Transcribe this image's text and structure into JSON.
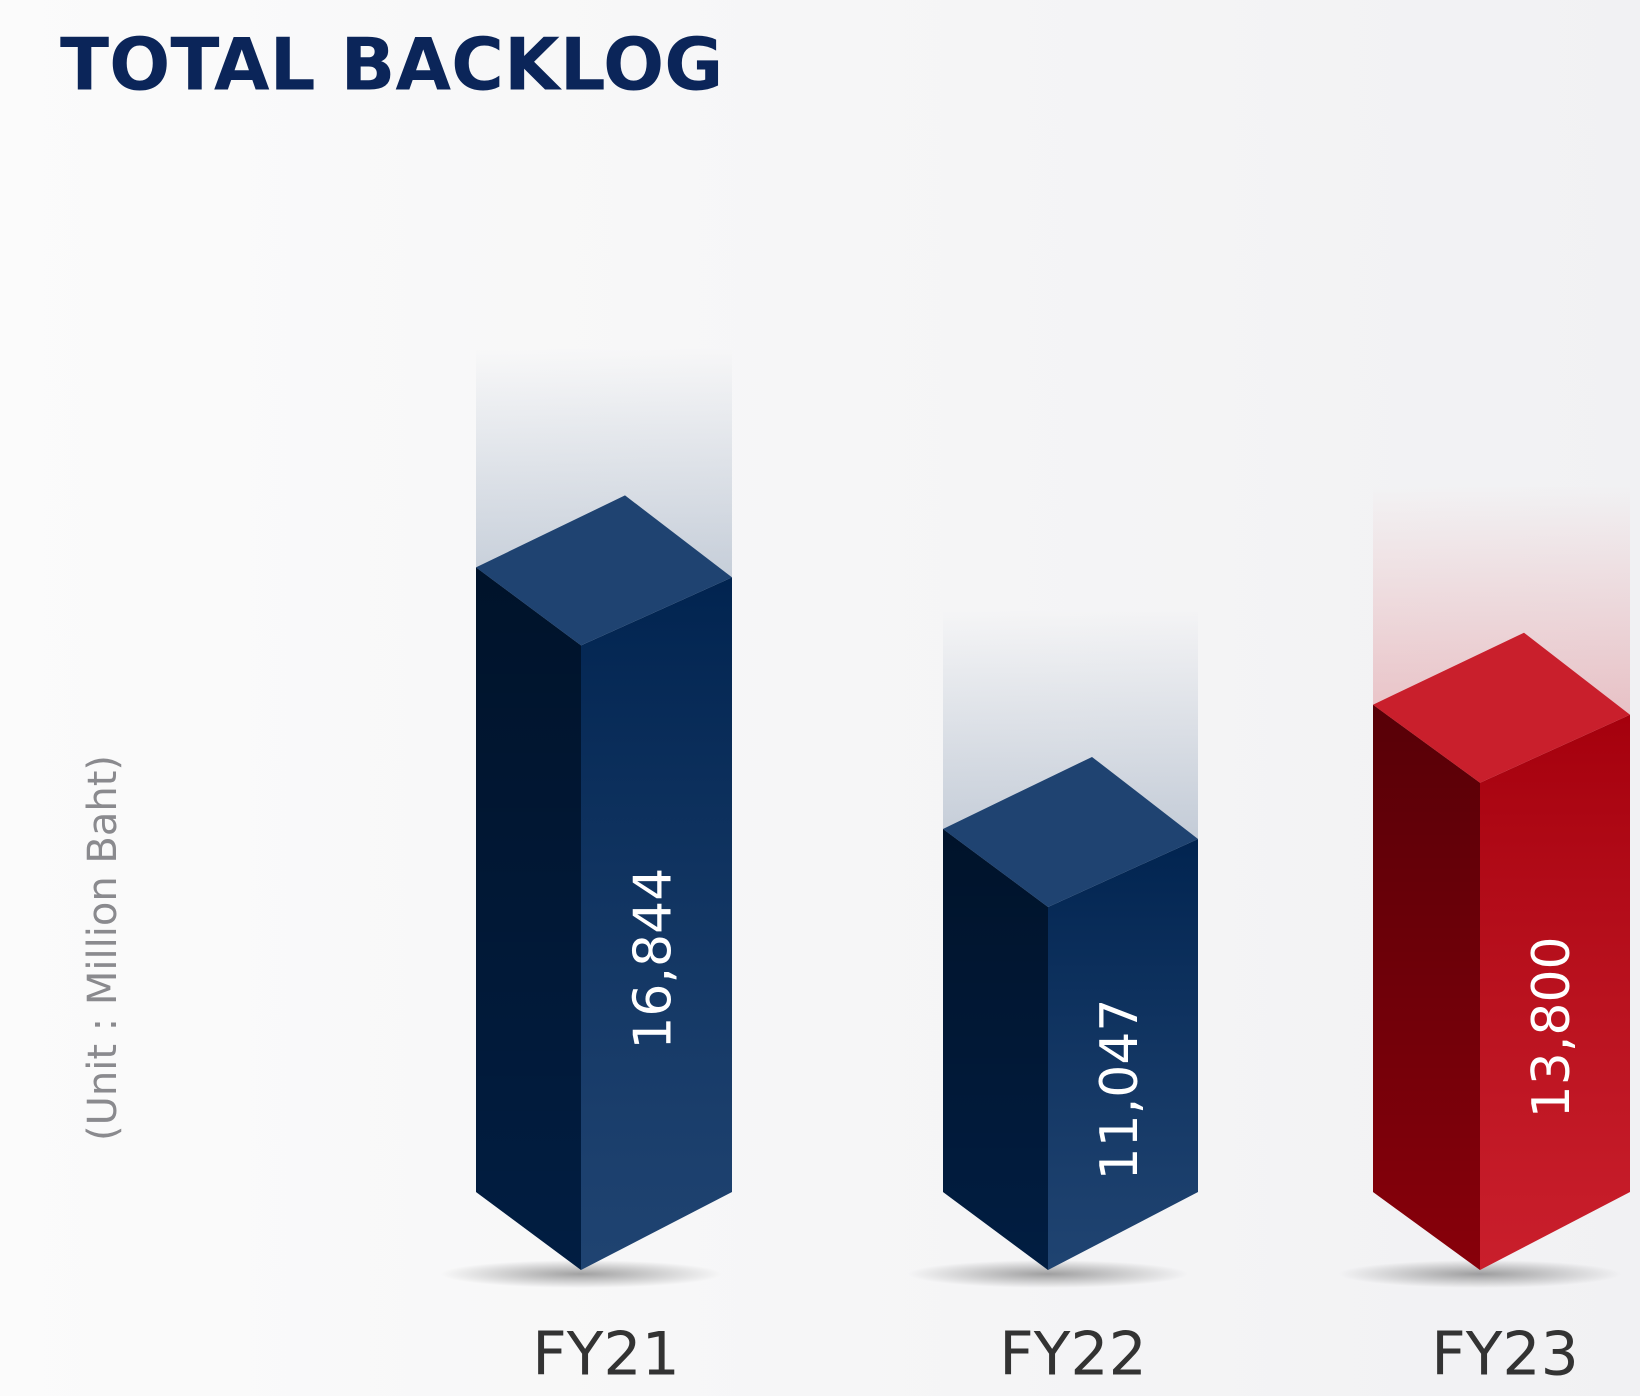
{
  "chart_data": {
    "type": "bar3d",
    "title": "TOTAL BACKLOG",
    "y_label": "(Unit : Million Baht)",
    "categories": [
      "FY21",
      "FY22",
      "FY23"
    ],
    "values": [
      16844,
      11047,
      13800
    ],
    "value_labels": [
      "16,844",
      "11,047",
      "13,800"
    ],
    "colors": [
      "#012a5e",
      "#012a5e",
      "#c2000f"
    ],
    "ylim": [
      3000,
      20000
    ]
  }
}
